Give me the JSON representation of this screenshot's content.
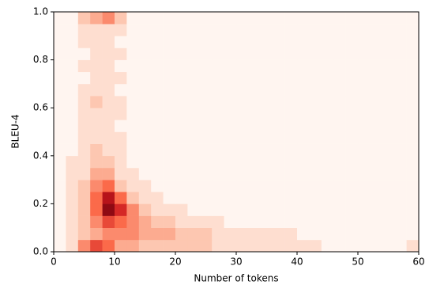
{
  "chart_data": {
    "type": "heatmap",
    "xlabel": "Number of tokens",
    "ylabel": "BLEU-4",
    "colormap": "Reds",
    "xlim": [
      0,
      60
    ],
    "ylim": [
      0,
      1
    ],
    "zlim": [
      0,
      10
    ],
    "xticks": [
      0,
      10,
      20,
      30,
      40,
      50,
      60
    ],
    "yticks": [
      {
        "value": 0,
        "label": "0.0"
      },
      {
        "value": 0.2,
        "label": "0.2"
      },
      {
        "value": 0.4,
        "label": "0.4"
      },
      {
        "value": 0.6,
        "label": "0.6"
      },
      {
        "value": 0.8,
        "label": "0.8"
      },
      {
        "value": 1,
        "label": "1.0"
      }
    ],
    "xbins": [
      0,
      2,
      4,
      6,
      8,
      10,
      12,
      14,
      16,
      18,
      20,
      22,
      24,
      26,
      28,
      30,
      32,
      34,
      36,
      38,
      40,
      42,
      44,
      46,
      48,
      50,
      52,
      54,
      56,
      58,
      60
    ],
    "ybins": [
      0,
      0.05,
      0.1,
      0.15,
      0.2,
      0.25,
      0.3,
      0.35,
      0.4,
      0.45,
      0.5,
      0.55,
      0.6,
      0.65,
      0.7,
      0.75,
      0.8,
      0.85,
      0.9,
      0.95,
      1
    ],
    "z": [
      [
        0,
        1,
        4,
        6,
        5,
        3,
        3,
        2,
        2,
        2,
        2,
        2,
        2,
        1,
        1,
        1,
        1,
        1,
        1,
        1,
        1,
        1,
        0,
        0,
        0,
        0,
        0,
        0,
        0,
        1
      ],
      [
        0,
        1,
        2,
        3,
        4,
        4,
        4,
        3,
        3,
        3,
        2,
        2,
        2,
        1,
        1,
        1,
        1,
        1,
        1,
        1,
        0,
        0,
        0,
        0,
        0,
        0,
        0,
        0,
        0,
        0
      ],
      [
        0,
        1,
        2,
        4,
        6,
        5,
        4,
        3,
        2,
        2,
        1,
        1,
        1,
        1,
        0,
        0,
        0,
        0,
        0,
        0,
        0,
        0,
        0,
        0,
        0,
        0,
        0,
        0,
        0,
        0
      ],
      [
        0,
        1,
        2,
        5,
        9,
        7,
        4,
        2,
        1,
        1,
        1,
        0,
        0,
        0,
        0,
        0,
        0,
        0,
        0,
        0,
        0,
        0,
        0,
        0,
        0,
        0,
        0,
        0,
        0,
        0
      ],
      [
        0,
        1,
        2,
        5,
        8,
        5,
        2,
        1,
        1,
        0,
        0,
        0,
        0,
        0,
        0,
        0,
        0,
        0,
        0,
        0,
        0,
        0,
        0,
        0,
        0,
        0,
        0,
        0,
        0,
        0
      ],
      [
        0,
        1,
        2,
        4,
        5,
        2,
        1,
        1,
        0,
        0,
        0,
        0,
        0,
        0,
        0,
        0,
        0,
        0,
        0,
        0,
        0,
        0,
        0,
        0,
        0,
        0,
        0,
        0,
        0,
        0
      ],
      [
        0,
        1,
        1,
        3,
        3,
        1,
        1,
        0,
        0,
        0,
        0,
        0,
        0,
        0,
        0,
        0,
        0,
        0,
        0,
        0,
        0,
        0,
        0,
        0,
        0,
        0,
        0,
        0,
        0,
        0
      ],
      [
        0,
        1,
        1,
        2,
        2,
        1,
        0,
        0,
        0,
        0,
        0,
        0,
        0,
        0,
        0,
        0,
        0,
        0,
        0,
        0,
        0,
        0,
        0,
        0,
        0,
        0,
        0,
        0,
        0,
        0
      ],
      [
        0,
        0,
        1,
        2,
        1,
        1,
        0,
        0,
        0,
        0,
        0,
        0,
        0,
        0,
        0,
        0,
        0,
        0,
        0,
        0,
        0,
        0,
        0,
        0,
        0,
        0,
        0,
        0,
        0,
        0
      ],
      [
        0,
        0,
        1,
        1,
        1,
        1,
        0,
        0,
        0,
        0,
        0,
        0,
        0,
        0,
        0,
        0,
        0,
        0,
        0,
        0,
        0,
        0,
        0,
        0,
        0,
        0,
        0,
        0,
        0,
        0
      ],
      [
        0,
        0,
        1,
        1,
        1,
        0,
        0,
        0,
        0,
        0,
        0,
        0,
        0,
        0,
        0,
        0,
        0,
        0,
        0,
        0,
        0,
        0,
        0,
        0,
        0,
        0,
        0,
        0,
        0,
        0
      ],
      [
        0,
        0,
        1,
        1,
        1,
        1,
        0,
        0,
        0,
        0,
        0,
        0,
        0,
        0,
        0,
        0,
        0,
        0,
        0,
        0,
        0,
        0,
        0,
        0,
        0,
        0,
        0,
        0,
        0,
        0
      ],
      [
        0,
        0,
        1,
        2,
        1,
        1,
        0,
        0,
        0,
        0,
        0,
        0,
        0,
        0,
        0,
        0,
        0,
        0,
        0,
        0,
        0,
        0,
        0,
        0,
        0,
        0,
        0,
        0,
        0,
        0
      ],
      [
        0,
        0,
        1,
        1,
        1,
        0,
        0,
        0,
        0,
        0,
        0,
        0,
        0,
        0,
        0,
        0,
        0,
        0,
        0,
        0,
        0,
        0,
        0,
        0,
        0,
        0,
        0,
        0,
        0,
        0
      ],
      [
        0,
        0,
        0,
        1,
        1,
        1,
        0,
        0,
        0,
        0,
        0,
        0,
        0,
        0,
        0,
        0,
        0,
        0,
        0,
        0,
        0,
        0,
        0,
        0,
        0,
        0,
        0,
        0,
        0,
        0
      ],
      [
        0,
        0,
        1,
        1,
        1,
        0,
        0,
        0,
        0,
        0,
        0,
        0,
        0,
        0,
        0,
        0,
        0,
        0,
        0,
        0,
        0,
        0,
        0,
        0,
        0,
        0,
        0,
        0,
        0,
        0
      ],
      [
        0,
        0,
        0,
        1,
        1,
        1,
        0,
        0,
        0,
        0,
        0,
        0,
        0,
        0,
        0,
        0,
        0,
        0,
        0,
        0,
        0,
        0,
        0,
        0,
        0,
        0,
        0,
        0,
        0,
        0
      ],
      [
        0,
        0,
        1,
        1,
        1,
        0,
        0,
        0,
        0,
        0,
        0,
        0,
        0,
        0,
        0,
        0,
        0,
        0,
        0,
        0,
        0,
        0,
        0,
        0,
        0,
        0,
        0,
        0,
        0,
        0
      ],
      [
        0,
        0,
        1,
        1,
        1,
        1,
        0,
        0,
        0,
        0,
        0,
        0,
        0,
        0,
        0,
        0,
        0,
        0,
        0,
        0,
        0,
        0,
        0,
        0,
        0,
        0,
        0,
        0,
        0,
        0
      ],
      [
        0,
        0,
        2,
        3,
        4,
        2,
        0,
        0,
        0,
        0,
        0,
        0,
        0,
        0,
        0,
        0,
        0,
        0,
        0,
        0,
        0,
        0,
        0,
        0,
        0,
        0,
        0,
        0,
        0,
        0
      ]
    ]
  }
}
